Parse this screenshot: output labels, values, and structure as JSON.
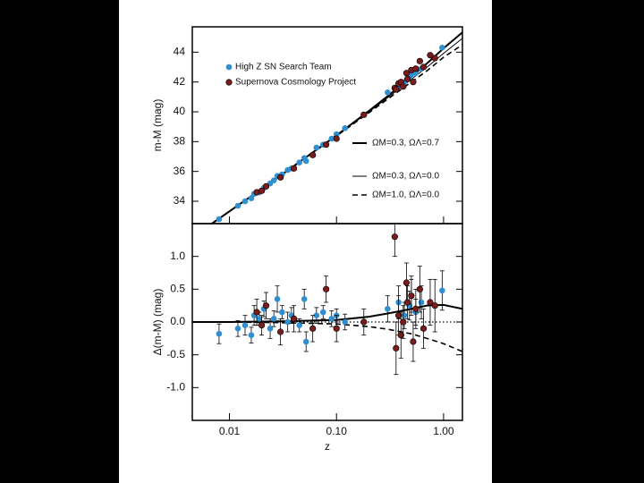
{
  "chart_data": [
    {
      "type": "scatter",
      "ylabel": "m-M (mag)",
      "xscale": "log",
      "xlim": [
        0.0045,
        1.5
      ],
      "ylim": [
        32.5,
        45.7
      ],
      "yticks": [
        34,
        36,
        38,
        40,
        42,
        44
      ],
      "series": [
        {
          "name": "High Z SN Search Team",
          "color": "#2f8fd0",
          "x": [
            0.008,
            0.012,
            0.014,
            0.016,
            0.017,
            0.019,
            0.021,
            0.024,
            0.026,
            0.028,
            0.031,
            0.035,
            0.038,
            0.045,
            0.05,
            0.052,
            0.065,
            0.075,
            0.09,
            0.1,
            0.12,
            0.3,
            0.38,
            0.43,
            0.48,
            0.5,
            0.55,
            0.62,
            0.97
          ],
          "values": [
            32.8,
            33.7,
            34.0,
            34.2,
            34.5,
            34.6,
            34.9,
            35.2,
            35.4,
            35.7,
            35.8,
            36.1,
            36.2,
            36.6,
            36.9,
            36.7,
            37.6,
            37.8,
            38.2,
            38.5,
            38.9,
            41.3,
            41.8,
            42.0,
            42.3,
            42.5,
            42.6,
            42.9,
            44.3
          ]
        },
        {
          "name": "Supernova Cosmology Project",
          "color": "#7a1c1c",
          "x": [
            0.018,
            0.02,
            0.022,
            0.03,
            0.04,
            0.06,
            0.08,
            0.1,
            0.18,
            0.35,
            0.38,
            0.4,
            0.42,
            0.45,
            0.46,
            0.5,
            0.52,
            0.55,
            0.6,
            0.65,
            0.75,
            0.83,
            0.36
          ],
          "values": [
            34.6,
            34.7,
            35.0,
            35.6,
            36.2,
            37.1,
            37.8,
            38.2,
            39.8,
            41.6,
            41.9,
            42.0,
            41.7,
            42.6,
            42.2,
            42.8,
            42.0,
            42.9,
            43.4,
            43.0,
            43.8,
            43.6,
            41.5
          ]
        }
      ],
      "lines": [
        {
          "name": "ΩM=0.3, ΩΛ=0.7",
          "style": "solid",
          "x": [
            0.0045,
            0.01,
            0.03,
            0.1,
            0.2,
            0.3,
            0.5,
            0.7,
            1.0,
            1.5
          ],
          "values": [
            31.59,
            33.32,
            35.72,
            38.42,
            40.05,
            41.05,
            42.37,
            43.25,
            44.26,
            45.33
          ]
        },
        {
          "name": "ΩM=0.3, ΩΛ=0.0",
          "style": "thin",
          "x": [
            0.0045,
            0.01,
            0.03,
            0.1,
            0.2,
            0.3,
            0.5,
            0.7,
            1.0,
            1.5
          ],
          "values": [
            31.59,
            33.32,
            35.72,
            38.4,
            39.99,
            40.95,
            42.18,
            42.99,
            43.92,
            44.93
          ]
        },
        {
          "name": "ΩM=1.0, ΩΛ=0.0",
          "style": "dashed",
          "x": [
            0.0045,
            0.01,
            0.03,
            0.1,
            0.2,
            0.3,
            0.5,
            0.7,
            1.0,
            1.5
          ],
          "values": [
            31.59,
            33.32,
            35.72,
            38.38,
            39.93,
            40.85,
            42.0,
            42.75,
            43.66,
            44.5
          ]
        }
      ]
    },
    {
      "type": "scatter",
      "ylabel": "Δ(m-M) (mag)",
      "xlabel": "z",
      "xscale": "log",
      "xlim": [
        0.0045,
        1.5
      ],
      "ylim": [
        -1.5,
        1.5
      ],
      "xticks": [
        {
          "value": 0.01,
          "label": "0.01"
        },
        {
          "value": 0.1,
          "label": "0.10"
        },
        {
          "value": 1,
          "label": "1.00"
        }
      ],
      "yticks": [
        {
          "value": -1,
          "label": "-1.0"
        },
        -0.5,
        {
          "value": 0,
          "label": "0.0"
        },
        0.5,
        {
          "value": 1,
          "label": "1.0"
        }
      ],
      "series": [
        {
          "color": "#2f8fd0",
          "x": [
            0.008,
            0.012,
            0.014,
            0.016,
            0.017,
            0.019,
            0.021,
            0.024,
            0.026,
            0.028,
            0.031,
            0.035,
            0.038,
            0.045,
            0.05,
            0.052,
            0.065,
            0.075,
            0.09,
            0.1,
            0.12,
            0.3,
            0.38,
            0.43,
            0.48,
            0.5,
            0.55,
            0.62,
            0.97
          ],
          "values": [
            -0.18,
            -0.1,
            -0.05,
            -0.2,
            0.1,
            0.05,
            0.2,
            -0.1,
            0.05,
            0.35,
            0.15,
            0.0,
            0.1,
            -0.05,
            0.35,
            -0.3,
            0.1,
            0.15,
            0.05,
            0.1,
            0.0,
            0.2,
            0.3,
            0.1,
            0.25,
            0.4,
            0.15,
            0.3,
            0.48
          ],
          "errors": [
            0.15,
            0.12,
            0.15,
            0.12,
            0.15,
            0.1,
            0.12,
            0.15,
            0.12,
            0.2,
            0.1,
            0.15,
            0.12,
            0.1,
            0.15,
            0.15,
            0.12,
            0.1,
            0.12,
            0.1,
            0.12,
            0.2,
            0.25,
            0.2,
            0.22,
            0.25,
            0.2,
            0.25,
            0.3
          ]
        },
        {
          "color": "#7a1c1c",
          "x": [
            0.018,
            0.02,
            0.022,
            0.03,
            0.04,
            0.06,
            0.08,
            0.1,
            0.18,
            0.35,
            0.38,
            0.4,
            0.42,
            0.45,
            0.46,
            0.5,
            0.52,
            0.55,
            0.6,
            0.65,
            0.75,
            0.83,
            0.36
          ],
          "values": [
            0.15,
            -0.05,
            0.25,
            -0.15,
            0.05,
            -0.1,
            0.5,
            -0.1,
            0.0,
            1.3,
            0.1,
            -0.2,
            0.0,
            0.6,
            0.3,
            0.4,
            -0.3,
            0.2,
            0.5,
            -0.1,
            0.3,
            0.25,
            -0.4
          ],
          "errors": [
            0.2,
            0.15,
            0.2,
            0.2,
            0.2,
            0.2,
            0.2,
            0.2,
            0.2,
            0.3,
            0.3,
            0.35,
            0.25,
            0.3,
            0.25,
            0.3,
            0.3,
            0.3,
            0.35,
            0.3,
            0.35,
            0.4,
            0.4
          ]
        }
      ],
      "lines": [
        {
          "style": "solid",
          "x": [
            0.0045,
            0.01,
            0.03,
            0.1,
            0.2,
            0.3,
            0.5,
            0.7,
            1.0,
            1.5
          ],
          "values": [
            0,
            0,
            0.01,
            0.03,
            0.08,
            0.13,
            0.2,
            0.25,
            0.26,
            0.2
          ]
        },
        {
          "style": "dashed",
          "x": [
            0.0045,
            0.01,
            0.03,
            0.1,
            0.2,
            0.3,
            0.5,
            0.7,
            1.0,
            1.5
          ],
          "values": [
            0,
            0,
            -0.01,
            -0.03,
            -0.07,
            -0.11,
            -0.18,
            -0.25,
            -0.33,
            -0.45
          ]
        },
        {
          "style": "dotted",
          "x": [
            0.0045,
            1.5
          ],
          "values": [
            0,
            0
          ]
        }
      ]
    }
  ]
}
